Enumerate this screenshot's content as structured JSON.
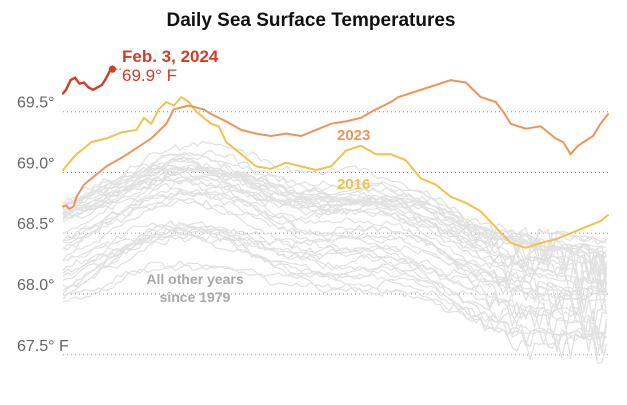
{
  "chart_data": {
    "type": "line",
    "title": "Daily Sea Surface Temperatures",
    "y_ticks": [
      {
        "value": 69.5,
        "label": "69.5°"
      },
      {
        "value": 69.0,
        "label": "69.0°"
      },
      {
        "value": 68.5,
        "label": "68.5°"
      },
      {
        "value": 68.0,
        "label": "68.0°"
      },
      {
        "value": 67.5,
        "label": "67.5° F"
      }
    ],
    "ylim": [
      67.35,
      69.95
    ],
    "x_range": [
      1,
      365
    ],
    "grid": true,
    "colors": {
      "y2024": "#d13d2a",
      "y2023": "#f0935a",
      "y2016": "#f2c14e",
      "others": "#e1e1e1"
    },
    "highlight": {
      "date_label": "Feb. 3, 2024",
      "value_label": "69.9° F",
      "day": 34,
      "value": 69.85
    },
    "annotations": {
      "y2023": "2023",
      "y2016": "2016",
      "others_line1": "All other years",
      "others_line2": "since 1979"
    },
    "series": [
      {
        "name": "2024",
        "x": [
          1,
          3,
          6,
          9,
          12,
          15,
          18,
          21,
          24,
          27,
          30,
          32,
          34
        ],
        "y": [
          69.65,
          69.68,
          69.76,
          69.78,
          69.73,
          69.74,
          69.7,
          69.68,
          69.7,
          69.72,
          69.78,
          69.83,
          69.85
        ]
      },
      {
        "name": "2023",
        "x": [
          1,
          3,
          5,
          8,
          10,
          15,
          20,
          30,
          40,
          50,
          60,
          70,
          75,
          85,
          95,
          100,
          110,
          120,
          130,
          140,
          150,
          160,
          170,
          180,
          190,
          200,
          210,
          220,
          225,
          230,
          240,
          250,
          260,
          270,
          280,
          290,
          295,
          300,
          310,
          320,
          330,
          335,
          340,
          345,
          350,
          355,
          360,
          365
        ],
        "y": [
          68.72,
          68.73,
          68.7,
          68.72,
          68.8,
          68.9,
          68.95,
          69.05,
          69.12,
          69.2,
          69.28,
          69.4,
          69.52,
          69.55,
          69.52,
          69.48,
          69.42,
          69.35,
          69.32,
          69.3,
          69.32,
          69.3,
          69.35,
          69.4,
          69.42,
          69.45,
          69.52,
          69.58,
          69.62,
          69.64,
          69.68,
          69.72,
          69.76,
          69.74,
          69.62,
          69.58,
          69.5,
          69.4,
          69.36,
          69.38,
          69.28,
          69.25,
          69.15,
          69.22,
          69.26,
          69.3,
          69.4,
          69.48
        ]
      },
      {
        "name": "2016",
        "x": [
          1,
          5,
          10,
          15,
          20,
          30,
          40,
          50,
          55,
          60,
          65,
          70,
          75,
          80,
          85,
          90,
          95,
          100,
          105,
          110,
          120,
          130,
          140,
          150,
          160,
          170,
          180,
          190,
          200,
          210,
          220,
          230,
          240,
          250,
          260,
          270,
          280,
          290,
          300,
          310,
          320,
          330,
          340,
          350,
          360,
          365
        ],
        "y": [
          69.02,
          69.08,
          69.15,
          69.2,
          69.25,
          69.28,
          69.33,
          69.35,
          69.45,
          69.4,
          69.52,
          69.58,
          69.55,
          69.62,
          69.58,
          69.5,
          69.45,
          69.4,
          69.38,
          69.25,
          69.15,
          69.05,
          69.03,
          69.08,
          69.05,
          69.02,
          69.05,
          69.18,
          69.22,
          69.15,
          69.15,
          69.1,
          68.95,
          68.9,
          68.8,
          68.75,
          68.68,
          68.55,
          68.42,
          68.38,
          68.42,
          68.45,
          68.5,
          68.55,
          68.6,
          68.65
        ]
      }
    ]
  }
}
